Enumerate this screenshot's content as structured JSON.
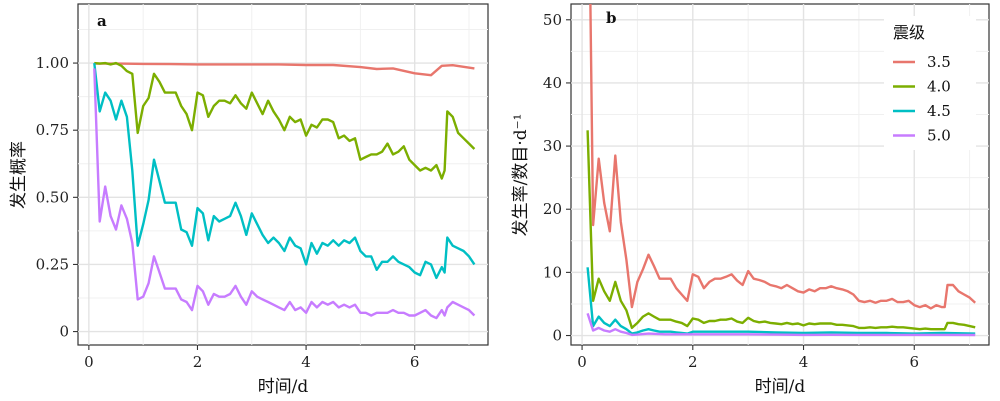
{
  "chart_data": [
    {
      "panel": "a",
      "type": "line",
      "xlabel": "时间/d",
      "ylabel": "发生概率",
      "xlim": [
        -0.2,
        7.35
      ],
      "ylim": [
        -0.05,
        1.22
      ],
      "xticks": [
        0,
        2,
        4,
        6
      ],
      "yticks": [
        0,
        0.25,
        0.5,
        0.75,
        1.0
      ],
      "ytick_labels": [
        "0",
        "0.25",
        "0.50",
        "0.75",
        "1.00"
      ],
      "grid": true,
      "series": [
        {
          "name": "3.5",
          "color": "#e8766d",
          "x": [
            0.1,
            0.5,
            1,
            1.5,
            2,
            2.5,
            3,
            3.5,
            4,
            4.5,
            5,
            5.3,
            5.6,
            6,
            6.3,
            6.5,
            6.7,
            7.1
          ],
          "y": [
            0.998,
            0.998,
            0.997,
            0.996,
            0.995,
            0.995,
            0.995,
            0.995,
            0.993,
            0.993,
            0.985,
            0.978,
            0.98,
            0.962,
            0.955,
            0.99,
            0.992,
            0.98
          ]
        },
        {
          "name": "4.0",
          "color": "#7cae00",
          "x": [
            0.1,
            0.2,
            0.3,
            0.4,
            0.5,
            0.6,
            0.7,
            0.8,
            0.9,
            1.0,
            1.1,
            1.2,
            1.3,
            1.4,
            1.5,
            1.6,
            1.7,
            1.8,
            1.9,
            2.0,
            2.1,
            2.2,
            2.3,
            2.4,
            2.5,
            2.6,
            2.7,
            2.8,
            2.9,
            3.0,
            3.1,
            3.2,
            3.3,
            3.4,
            3.5,
            3.6,
            3.7,
            3.8,
            3.9,
            4.0,
            4.1,
            4.2,
            4.3,
            4.4,
            4.5,
            4.6,
            4.7,
            4.8,
            4.9,
            5.0,
            5.1,
            5.2,
            5.3,
            5.4,
            5.5,
            5.6,
            5.7,
            5.8,
            5.9,
            6.0,
            6.1,
            6.2,
            6.3,
            6.4,
            6.5,
            6.55,
            6.6,
            6.7,
            6.8,
            6.9,
            7.0,
            7.1
          ],
          "y": [
            1.0,
            0.998,
            1.0,
            0.995,
            1.0,
            0.99,
            0.97,
            0.96,
            0.74,
            0.84,
            0.87,
            0.96,
            0.93,
            0.89,
            0.89,
            0.89,
            0.84,
            0.81,
            0.75,
            0.89,
            0.88,
            0.8,
            0.84,
            0.86,
            0.86,
            0.85,
            0.88,
            0.85,
            0.83,
            0.89,
            0.85,
            0.81,
            0.86,
            0.82,
            0.79,
            0.75,
            0.8,
            0.78,
            0.79,
            0.73,
            0.77,
            0.76,
            0.79,
            0.79,
            0.78,
            0.72,
            0.73,
            0.71,
            0.72,
            0.64,
            0.65,
            0.66,
            0.66,
            0.67,
            0.7,
            0.66,
            0.67,
            0.69,
            0.64,
            0.62,
            0.6,
            0.61,
            0.6,
            0.62,
            0.57,
            0.6,
            0.82,
            0.8,
            0.74,
            0.72,
            0.7,
            0.68
          ]
        },
        {
          "name": "4.5",
          "color": "#00bfc4",
          "x": [
            0.1,
            0.2,
            0.3,
            0.4,
            0.5,
            0.6,
            0.7,
            0.8,
            0.9,
            1.0,
            1.1,
            1.2,
            1.3,
            1.4,
            1.5,
            1.6,
            1.7,
            1.8,
            1.9,
            2.0,
            2.1,
            2.2,
            2.3,
            2.4,
            2.5,
            2.6,
            2.7,
            2.8,
            2.9,
            3.0,
            3.1,
            3.2,
            3.3,
            3.4,
            3.5,
            3.6,
            3.7,
            3.8,
            3.9,
            4.0,
            4.1,
            4.2,
            4.3,
            4.4,
            4.5,
            4.6,
            4.7,
            4.8,
            4.9,
            5.0,
            5.1,
            5.2,
            5.3,
            5.4,
            5.5,
            5.6,
            5.7,
            5.8,
            5.9,
            6.0,
            6.1,
            6.2,
            6.3,
            6.4,
            6.5,
            6.55,
            6.6,
            6.7,
            6.8,
            6.9,
            7.0,
            7.1
          ],
          "y": [
            1.0,
            0.82,
            0.89,
            0.86,
            0.79,
            0.86,
            0.8,
            0.6,
            0.32,
            0.4,
            0.49,
            0.64,
            0.56,
            0.48,
            0.48,
            0.48,
            0.38,
            0.37,
            0.32,
            0.46,
            0.44,
            0.34,
            0.43,
            0.41,
            0.42,
            0.43,
            0.48,
            0.43,
            0.36,
            0.44,
            0.4,
            0.36,
            0.33,
            0.35,
            0.33,
            0.3,
            0.35,
            0.32,
            0.31,
            0.25,
            0.33,
            0.29,
            0.33,
            0.32,
            0.34,
            0.32,
            0.34,
            0.33,
            0.35,
            0.3,
            0.28,
            0.28,
            0.23,
            0.26,
            0.26,
            0.28,
            0.26,
            0.25,
            0.24,
            0.22,
            0.21,
            0.26,
            0.25,
            0.2,
            0.24,
            0.22,
            0.35,
            0.32,
            0.31,
            0.3,
            0.28,
            0.25
          ]
        },
        {
          "name": "5.0",
          "color": "#c77cff",
          "x": [
            0.1,
            0.2,
            0.3,
            0.4,
            0.5,
            0.6,
            0.7,
            0.8,
            0.9,
            1.0,
            1.1,
            1.2,
            1.3,
            1.4,
            1.5,
            1.6,
            1.7,
            1.8,
            1.9,
            2.0,
            2.1,
            2.2,
            2.3,
            2.4,
            2.5,
            2.6,
            2.7,
            2.8,
            2.9,
            3.0,
            3.1,
            3.2,
            3.3,
            3.4,
            3.5,
            3.6,
            3.7,
            3.8,
            3.9,
            4.0,
            4.1,
            4.2,
            4.3,
            4.4,
            4.5,
            4.6,
            4.7,
            4.8,
            4.9,
            5.0,
            5.1,
            5.2,
            5.3,
            5.4,
            5.5,
            5.6,
            5.7,
            5.8,
            5.9,
            6.0,
            6.1,
            6.2,
            6.3,
            6.4,
            6.5,
            6.55,
            6.6,
            6.7,
            6.8,
            6.9,
            7.0,
            7.1
          ],
          "y": [
            0.98,
            0.41,
            0.54,
            0.43,
            0.38,
            0.47,
            0.42,
            0.33,
            0.12,
            0.13,
            0.18,
            0.28,
            0.22,
            0.16,
            0.16,
            0.16,
            0.12,
            0.11,
            0.08,
            0.17,
            0.15,
            0.1,
            0.14,
            0.13,
            0.13,
            0.14,
            0.17,
            0.13,
            0.1,
            0.15,
            0.13,
            0.12,
            0.11,
            0.1,
            0.09,
            0.08,
            0.11,
            0.08,
            0.09,
            0.07,
            0.11,
            0.09,
            0.11,
            0.1,
            0.11,
            0.09,
            0.1,
            0.09,
            0.1,
            0.07,
            0.07,
            0.06,
            0.07,
            0.07,
            0.07,
            0.08,
            0.07,
            0.07,
            0.06,
            0.06,
            0.07,
            0.08,
            0.06,
            0.05,
            0.08,
            0.06,
            0.09,
            0.11,
            0.1,
            0.09,
            0.08,
            0.06
          ]
        }
      ]
    },
    {
      "panel": "b",
      "type": "line",
      "xlabel": "时间/d",
      "ylabel": "发生率/数目·d⁻¹",
      "xlim": [
        -0.2,
        7.35
      ],
      "ylim": [
        -1.5,
        52.5
      ],
      "xticks": [
        0,
        2,
        4,
        6
      ],
      "yticks": [
        0,
        10,
        20,
        30,
        40,
        50
      ],
      "grid": true,
      "legend": {
        "title": "震级",
        "position": "top-right",
        "labels": [
          "3.5",
          "4.0",
          "4.5",
          "5.0"
        ]
      },
      "series": [
        {
          "name": "3.5",
          "color": "#e8766d",
          "x": [
            0.15,
            0.2,
            0.3,
            0.4,
            0.5,
            0.6,
            0.7,
            0.8,
            0.9,
            1.0,
            1.1,
            1.2,
            1.3,
            1.4,
            1.5,
            1.6,
            1.7,
            1.8,
            1.9,
            2.0,
            2.1,
            2.2,
            2.3,
            2.4,
            2.5,
            2.6,
            2.7,
            2.8,
            2.9,
            3.0,
            3.1,
            3.2,
            3.3,
            3.4,
            3.5,
            3.6,
            3.7,
            3.8,
            3.9,
            4.0,
            4.1,
            4.2,
            4.3,
            4.4,
            4.5,
            4.6,
            4.7,
            4.8,
            4.9,
            5.0,
            5.1,
            5.2,
            5.3,
            5.4,
            5.5,
            5.6,
            5.7,
            5.8,
            5.9,
            6.0,
            6.1,
            6.2,
            6.3,
            6.4,
            6.5,
            6.55,
            6.6,
            6.7,
            6.8,
            6.9,
            7.0,
            7.1
          ],
          "y": [
            52.5,
            17.5,
            28.0,
            21.0,
            16.5,
            28.5,
            18.0,
            12.0,
            4.5,
            8.5,
            10.5,
            12.8,
            11.0,
            9.0,
            9.0,
            9.0,
            7.5,
            6.5,
            5.5,
            9.7,
            9.3,
            7.5,
            8.5,
            9.0,
            9.0,
            9.3,
            9.7,
            8.7,
            8.0,
            10.2,
            9.0,
            8.8,
            8.5,
            8.0,
            7.8,
            7.5,
            8.0,
            7.5,
            7.0,
            6.8,
            7.3,
            7.0,
            7.5,
            7.5,
            7.8,
            7.5,
            7.3,
            7.0,
            6.5,
            5.5,
            5.3,
            5.5,
            5.2,
            5.5,
            5.5,
            5.8,
            5.3,
            5.3,
            5.5,
            4.8,
            4.5,
            4.8,
            4.3,
            4.8,
            4.5,
            4.5,
            8.0,
            8.0,
            7.0,
            6.5,
            6.0,
            5.2
          ]
        },
        {
          "name": "4.0",
          "color": "#7cae00",
          "x": [
            0.1,
            0.2,
            0.3,
            0.4,
            0.5,
            0.6,
            0.7,
            0.8,
            0.9,
            1.0,
            1.1,
            1.2,
            1.3,
            1.4,
            1.5,
            1.6,
            1.7,
            1.8,
            1.9,
            2.0,
            2.1,
            2.2,
            2.3,
            2.4,
            2.5,
            2.6,
            2.7,
            2.8,
            2.9,
            3.0,
            3.1,
            3.2,
            3.3,
            3.4,
            3.5,
            3.6,
            3.7,
            3.8,
            3.9,
            4.0,
            4.1,
            4.2,
            4.3,
            4.4,
            4.5,
            4.6,
            4.7,
            4.8,
            4.9,
            5.0,
            5.1,
            5.2,
            5.3,
            5.4,
            5.5,
            5.6,
            5.7,
            5.8,
            5.9,
            6.0,
            6.1,
            6.2,
            6.3,
            6.4,
            6.5,
            6.55,
            6.6,
            6.7,
            6.8,
            6.9,
            7.0,
            7.1
          ],
          "y": [
            32.5,
            5.5,
            9.0,
            7.0,
            5.5,
            8.5,
            5.5,
            4.0,
            1.2,
            2.0,
            3.0,
            3.5,
            3.0,
            2.5,
            2.5,
            2.5,
            2.2,
            2.0,
            1.5,
            2.7,
            2.5,
            2.0,
            2.3,
            2.3,
            2.5,
            2.5,
            2.7,
            2.2,
            2.0,
            2.8,
            2.3,
            2.1,
            2.2,
            2.0,
            1.9,
            1.8,
            2.0,
            1.8,
            1.9,
            1.6,
            1.9,
            1.8,
            1.9,
            1.9,
            1.9,
            1.7,
            1.7,
            1.6,
            1.5,
            1.2,
            1.2,
            1.3,
            1.2,
            1.3,
            1.3,
            1.4,
            1.3,
            1.3,
            1.2,
            1.1,
            1.0,
            1.1,
            1.0,
            1.0,
            1.0,
            1.0,
            2.0,
            2.0,
            1.8,
            1.7,
            1.5,
            1.3
          ]
        },
        {
          "name": "4.5",
          "color": "#00bfc4",
          "x": [
            0.1,
            0.2,
            0.3,
            0.4,
            0.5,
            0.6,
            0.7,
            0.8,
            0.9,
            1.0,
            1.1,
            1.2,
            1.3,
            1.4,
            1.5,
            1.6,
            1.7,
            1.8,
            1.9,
            2.0,
            2.5,
            3.0,
            3.5,
            4.0,
            4.5,
            5.0,
            5.5,
            6.0,
            6.5,
            7.1
          ],
          "y": [
            10.8,
            1.5,
            3.0,
            2.0,
            1.5,
            2.5,
            1.5,
            1.0,
            0.3,
            0.5,
            0.8,
            1.0,
            0.8,
            0.6,
            0.6,
            0.6,
            0.5,
            0.4,
            0.3,
            0.6,
            0.6,
            0.6,
            0.5,
            0.4,
            0.5,
            0.4,
            0.4,
            0.3,
            0.4,
            0.3
          ]
        },
        {
          "name": "5.0",
          "color": "#c77cff",
          "x": [
            0.1,
            0.2,
            0.3,
            0.4,
            0.5,
            0.6,
            0.7,
            0.8,
            0.9,
            1.0,
            1.2,
            1.5,
            2.0,
            2.5,
            3.0,
            3.5,
            4.0,
            4.5,
            5.0,
            5.5,
            6.0,
            6.5,
            7.1
          ],
          "y": [
            3.5,
            0.8,
            1.2,
            0.8,
            0.6,
            1.0,
            0.6,
            0.4,
            0.1,
            0.15,
            0.3,
            0.2,
            0.2,
            0.2,
            0.2,
            0.15,
            0.1,
            0.12,
            0.1,
            0.1,
            0.1,
            0.1,
            0.08
          ]
        }
      ]
    }
  ]
}
